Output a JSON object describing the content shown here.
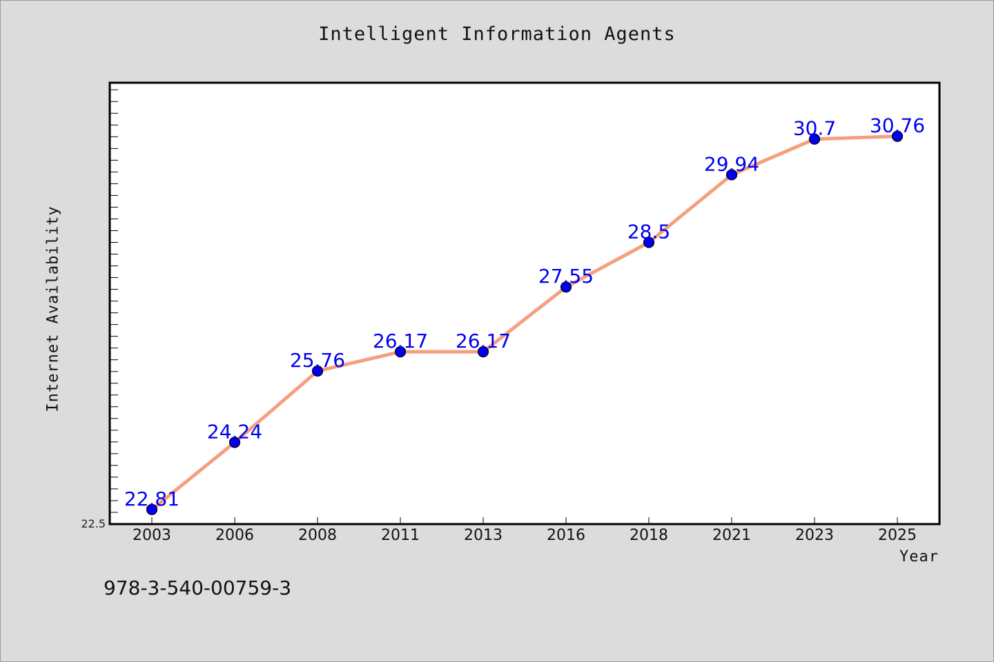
{
  "chart_data": {
    "type": "line",
    "title": "Intelligent Information Agents",
    "xlabel": "Year",
    "ylabel": "Internet Availability",
    "categories": [
      "2003",
      "2006",
      "2008",
      "2011",
      "2013",
      "2016",
      "2018",
      "2021",
      "2023",
      "2025"
    ],
    "series": [
      {
        "values": [
          22.81,
          24.24,
          25.76,
          26.17,
          26.17,
          27.55,
          28.5,
          29.94,
          30.7,
          30.76
        ]
      }
    ],
    "data_labels": [
      "22.81",
      "24.24",
      "25.76",
      "26.17",
      "26.17",
      "27.55",
      "28.5",
      "29.94",
      "30.7",
      "30.76"
    ],
    "ytick_labels": [
      "22.5"
    ],
    "ylim": [
      22.5,
      31.9
    ],
    "grid": false,
    "legend": "none",
    "colors": {
      "line": "#f4a07f",
      "marker": "#0000ee",
      "label": "#0000ee",
      "background": "#dcdcdc",
      "plot": "#ffffff"
    }
  },
  "footnote": "978-3-540-00759-3"
}
